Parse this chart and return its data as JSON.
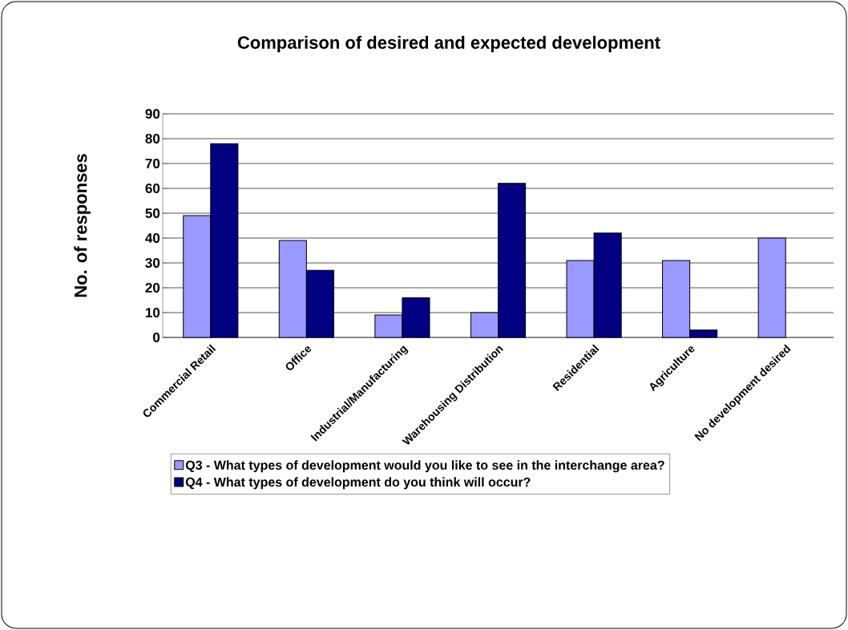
{
  "chart_data": {
    "type": "bar",
    "title": "Comparison of desired and expected development",
    "ylabel": "No. of responses",
    "categories": [
      "Commercial Retail",
      "Office",
      "Industrial/Manufacturing",
      "Warehousing Distribution",
      "Residential",
      "Agriculture",
      "No development desired"
    ],
    "series": [
      {
        "name": "Q3 - What types of development would you like to see in the interchange area?",
        "color": "#9999ff",
        "values": [
          49,
          39,
          9,
          10,
          31,
          31,
          40
        ]
      },
      {
        "name": "Q4 - What types of development do you think will occur?",
        "color": "#000080",
        "values": [
          78,
          27,
          16,
          62,
          42,
          3,
          null
        ]
      }
    ],
    "ylim": [
      0,
      90
    ],
    "yticks": [
      0,
      10,
      20,
      30,
      40,
      50,
      60,
      70,
      80,
      90
    ],
    "grid": "y",
    "legend": "bottom"
  }
}
